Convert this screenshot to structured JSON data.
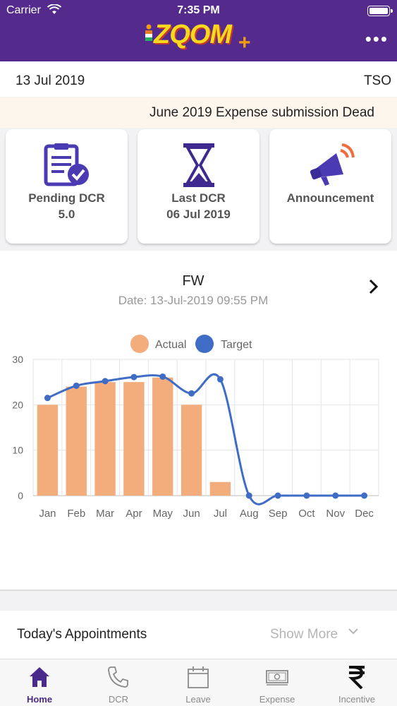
{
  "status_bar": {
    "carrier": "Carrier",
    "time": "7:35 PM"
  },
  "header": {
    "logo_text": "ZQOM",
    "logo_plus": "+",
    "menu_icon": "more-dots-icon"
  },
  "info": {
    "date": "13 Jul 2019",
    "role": "TSO"
  },
  "marquee": {
    "text": "June 2019 Expense submission Dead"
  },
  "cards": [
    {
      "title": "Pending DCR",
      "value": "5.0",
      "icon": "clipboard-check-icon"
    },
    {
      "title": "Last DCR",
      "value": "06 Jul 2019",
      "icon": "hourglass-icon"
    },
    {
      "title": "Announcement",
      "value": "",
      "icon": "megaphone-icon"
    }
  ],
  "panel": {
    "title": "FW",
    "date": "Date: 13-Jul-2019 09:55 PM"
  },
  "colors": {
    "header": "#542a8c",
    "actual": "#f3ad7d",
    "target": "#3f6cc4"
  },
  "chart_data": {
    "type": "bar",
    "categories": [
      "Jan",
      "Feb",
      "Mar",
      "Apr",
      "May",
      "Jun",
      "Jul",
      "Aug",
      "Sep",
      "Oct",
      "Nov",
      "Dec"
    ],
    "series": [
      {
        "name": "Actual",
        "type": "bar",
        "values": [
          20,
          24,
          25,
          25,
          26,
          20,
          3,
          0,
          0,
          0,
          0,
          0
        ]
      },
      {
        "name": "Target",
        "type": "line",
        "values": [
          21.5,
          24.2,
          25.2,
          26.1,
          26.2,
          22.5,
          25.6,
          0,
          0,
          0,
          0,
          0
        ]
      }
    ],
    "ylim": [
      0,
      30
    ],
    "yticks": [
      0,
      10,
      20,
      30
    ],
    "legend": "top-center",
    "grid": true
  },
  "appointments": {
    "title": "Today's Appointments",
    "show_more": "Show More"
  },
  "tabs": [
    {
      "label": "Home",
      "icon": "home-icon",
      "active": true
    },
    {
      "label": "DCR",
      "icon": "phone-icon",
      "active": false
    },
    {
      "label": "Leave",
      "icon": "calendar-icon",
      "active": false
    },
    {
      "label": "Expense",
      "icon": "cash-icon",
      "active": false
    },
    {
      "label": "Incentive",
      "icon": "rupee-icon",
      "active": false
    }
  ]
}
